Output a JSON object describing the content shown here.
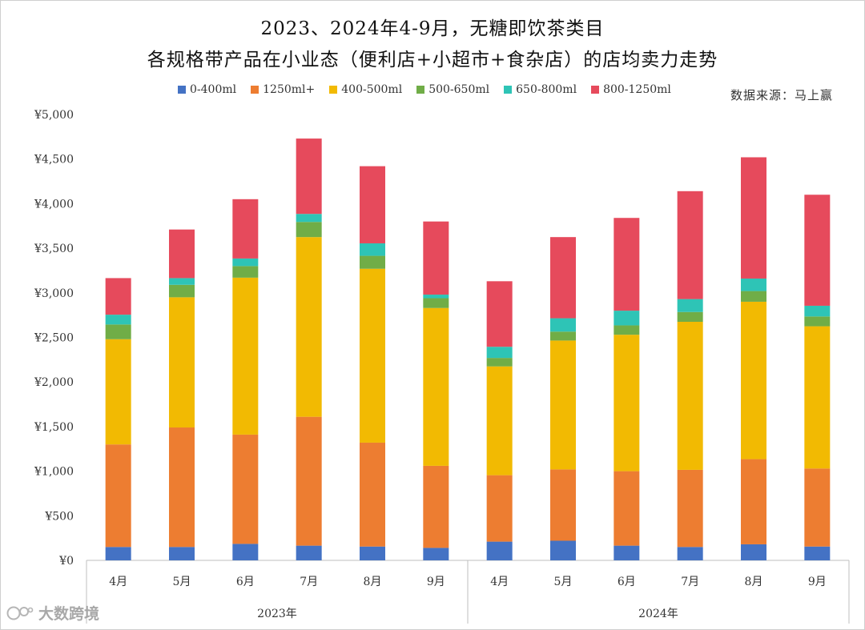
{
  "chart_data": {
    "type": "bar",
    "stacked": true,
    "title_line1": "2023、2024年4-9月，无糖即饮茶类目",
    "title_line2": "各规格带产品在小业态（便利店+小超市+食杂店）的店均卖力走势",
    "source": "数据来源：马上赢",
    "watermark": "大数跨境",
    "categories": [
      "4月",
      "5月",
      "6月",
      "7月",
      "8月",
      "9月",
      "4月",
      "5月",
      "6月",
      "7月",
      "8月",
      "9月"
    ],
    "groups": [
      {
        "label": "2023年",
        "start": 0,
        "end": 5
      },
      {
        "label": "2024年",
        "start": 6,
        "end": 11
      }
    ],
    "ylim": [
      0,
      5000
    ],
    "yticks": [
      0,
      500,
      1000,
      1500,
      2000,
      2500,
      3000,
      3500,
      4000,
      4500,
      5000
    ],
    "ytick_labels": [
      "¥0",
      "¥500",
      "¥1,000",
      "¥1,500",
      "¥2,000",
      "¥2,500",
      "¥3,000",
      "¥3,500",
      "¥4,000",
      "¥4,500",
      "¥5,000"
    ],
    "series": [
      {
        "name": "0-400ml",
        "color": "#4472C4",
        "values": [
          150,
          150,
          185,
          165,
          155,
          140,
          210,
          220,
          165,
          150,
          180,
          155
        ]
      },
      {
        "name": "1250ml+",
        "color": "#ED7D31",
        "values": [
          1150,
          1340,
          1225,
          1445,
          1165,
          920,
          745,
          800,
          835,
          865,
          955,
          875
        ]
      },
      {
        "name": "400-500ml",
        "color": "#F2BA02",
        "values": [
          1180,
          1460,
          1760,
          2015,
          1950,
          1770,
          1220,
          1445,
          1530,
          1660,
          1765,
          1595
        ]
      },
      {
        "name": "500-650ml",
        "color": "#70AD47",
        "values": [
          165,
          140,
          130,
          170,
          145,
          110,
          95,
          100,
          105,
          110,
          120,
          110
        ]
      },
      {
        "name": "650-800ml",
        "color": "#2EC4B6",
        "values": [
          110,
          75,
          85,
          90,
          140,
          40,
          125,
          150,
          165,
          145,
          140,
          120
        ]
      },
      {
        "name": "800-1250ml",
        "color": "#E64A5C",
        "values": [
          410,
          545,
          665,
          845,
          865,
          820,
          735,
          910,
          1040,
          1210,
          1360,
          1245
        ]
      }
    ]
  }
}
